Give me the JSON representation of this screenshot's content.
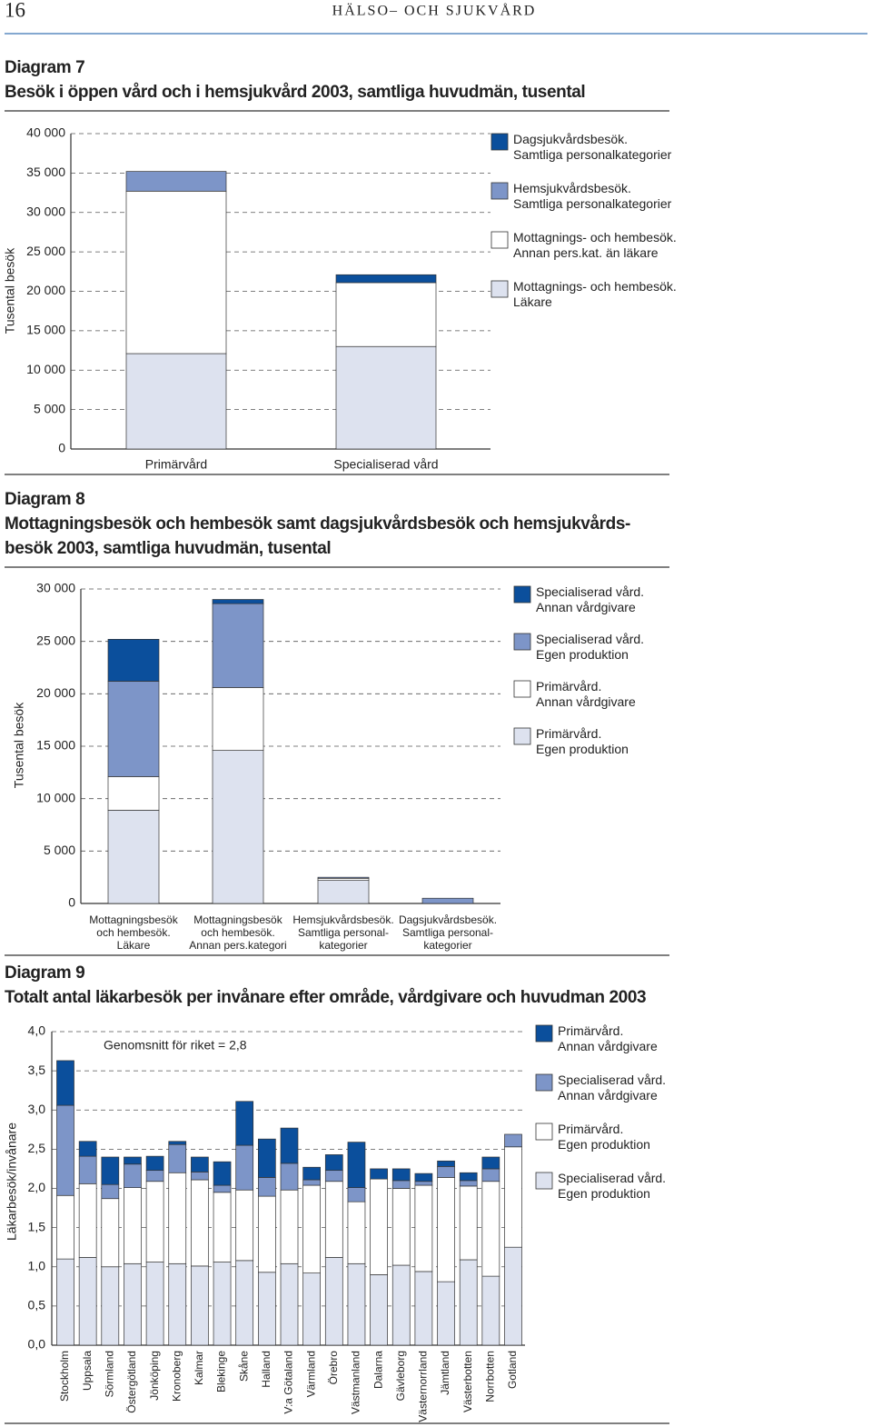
{
  "header": {
    "page_number": "16",
    "running_title": "HÄLSO– OCH SJUKVÅRD"
  },
  "chart_data": [
    {
      "type": "bar",
      "stacked": true,
      "label": "Diagram 7",
      "title": "Besök i öppen vård och i hemsjukvård 2003, samtliga huvudmän, tusental",
      "ylabel": "Tusental besök",
      "categories": [
        "Primärvård",
        "Specialiserad vård"
      ],
      "series": [
        {
          "name": "Dagsjukvårdsbesök.\nSamtliga personalkategorier",
          "color": "#0b4f9c",
          "values": [
            0,
            1000
          ]
        },
        {
          "name": "Hemsjukvårdsbesök.\nSamtliga personalkategorier",
          "color": "#7d95c8",
          "values": [
            2500,
            0
          ]
        },
        {
          "name": "Mottagnings- och hembesök.\nAnnan pers.kat. än läkare",
          "color": "#ffffff",
          "values": [
            20600,
            8100
          ]
        },
        {
          "name": "Mottagnings- och hembesök.\nLäkare",
          "color": "#dde2ef",
          "values": [
            12100,
            13000
          ]
        }
      ],
      "ylim": [
        0,
        40000
      ],
      "yticks": [
        0,
        {
          "value": 5000,
          "label": "5 000"
        },
        {
          "value": 10000,
          "label": "10 000"
        },
        {
          "value": 15000,
          "label": "15 000"
        },
        {
          "value": 20000,
          "label": "20 000"
        },
        {
          "value": 25000,
          "label": "25 000"
        },
        {
          "value": 30000,
          "label": "30 000"
        },
        {
          "value": 35000,
          "label": "35 000"
        },
        {
          "value": 40000,
          "label": "40 000"
        }
      ],
      "grid": true
    },
    {
      "type": "bar",
      "stacked": true,
      "label": "Diagram 8",
      "title": "Mottagningsbesök och hembesök samt dagsjukvårdsbesök och hemsjukvårds-\nbesök 2003, samtliga huvudmän, tusental",
      "ylabel": "Tusental besök",
      "categories": [
        "Mottagningsbesök\noch hembesök.\nLäkare",
        "Mottagningsbesök\noch hembesök.\nAnnan pers.kategori",
        "Hemsjukvårdsbesök.\nSamtliga personal-\nkategorier",
        "Dagsjukvårdsbesök.\nSamtliga personal-\nkategorier"
      ],
      "series": [
        {
          "name": "Specialiserad vård.\nAnnan vårdgivare",
          "color": "#0b4f9c",
          "values": [
            4000,
            400,
            0,
            0
          ]
        },
        {
          "name": "Specialiserad vård.\nEgen produktion",
          "color": "#7d95c8",
          "values": [
            9100,
            8000,
            100,
            500
          ]
        },
        {
          "name": "Primärvård.\nAnnan vårdgivare",
          "color": "#ffffff",
          "values": [
            3200,
            6000,
            200,
            0
          ]
        },
        {
          "name": "Primärvård.\nEgen produktion",
          "color": "#dde2ef",
          "values": [
            8900,
            14600,
            2200,
            0
          ]
        }
      ],
      "ylim": [
        0,
        30000
      ],
      "yticks": [
        0,
        {
          "value": 5000,
          "label": "5 000"
        },
        {
          "value": 10000,
          "label": "10 000"
        },
        {
          "value": 15000,
          "label": "15 000"
        },
        {
          "value": 20000,
          "label": "20 000"
        },
        {
          "value": 25000,
          "label": "25 000"
        },
        {
          "value": 30000,
          "label": "30 000"
        }
      ],
      "grid": true
    },
    {
      "type": "bar",
      "stacked": true,
      "label": "Diagram 9",
      "title": "Totalt antal läkarbesök per invånare efter område, vårdgivare och huvudman 2003",
      "ylabel": "Läkarbesök/invånare",
      "annotation": "Genomsnitt för riket = 2,8",
      "categories": [
        "Stockholm",
        "Uppsala",
        "Sörmland",
        "Östergötland",
        "Jönköping",
        "Kronoberg",
        "Kalmar",
        "Blekinge",
        "Skåne",
        "Halland",
        "V:a Götaland",
        "Värmland",
        "Örebro",
        "Västmanland",
        "Dalarna",
        "Gävleborg",
        "Västernorrland",
        "Jämtland",
        "Västerbotten",
        "Norrbotten",
        "Gotland"
      ],
      "series": [
        {
          "name": "Primärvård.\nAnnan vårdgivare",
          "color": "#0b4f9c",
          "values": [
            0.57,
            0.19,
            0.35,
            0.09,
            0.18,
            0.04,
            0.19,
            0.3,
            0.56,
            0.49,
            0.45,
            0.16,
            0.2,
            0.58,
            0.13,
            0.15,
            0.1,
            0.07,
            0.1,
            0.15,
            0
          ]
        },
        {
          "name": "Specialiserad vård.\nAnnan vårdgivare",
          "color": "#7d95c8",
          "values": [
            1.15,
            0.35,
            0.18,
            0.3,
            0.14,
            0.36,
            0.1,
            0.09,
            0.57,
            0.24,
            0.34,
            0.07,
            0.14,
            0.18,
            0,
            0.1,
            0.05,
            0.14,
            0.07,
            0.16,
            0.16
          ]
        },
        {
          "name": "Primärvård.\nEgen produktion",
          "color": "#ffffff",
          "values": [
            0.81,
            0.94,
            0.87,
            0.97,
            1.03,
            1.16,
            1.1,
            0.89,
            0.9,
            0.97,
            0.94,
            1.12,
            0.97,
            0.79,
            1.22,
            0.98,
            1.1,
            1.33,
            0.94,
            1.21,
            1.28
          ]
        },
        {
          "name": "Specialiserad vård.\nEgen produktion",
          "color": "#dde2ef",
          "values": [
            1.1,
            1.12,
            1.0,
            1.04,
            1.06,
            1.04,
            1.01,
            1.06,
            1.08,
            0.93,
            1.04,
            0.92,
            1.12,
            1.04,
            0.9,
            1.02,
            0.94,
            0.81,
            1.09,
            0.88,
            1.25
          ]
        }
      ],
      "ylim": [
        0,
        4
      ],
      "yticks": [
        {
          "value": 0,
          "label": "0,0"
        },
        {
          "value": 0.5,
          "label": "0,5"
        },
        {
          "value": 1,
          "label": "1,0"
        },
        {
          "value": 1.5,
          "label": "1,5"
        },
        {
          "value": 2,
          "label": "2,0"
        },
        {
          "value": 2.5,
          "label": "2,5"
        },
        {
          "value": 3,
          "label": "3,0"
        },
        {
          "value": 3.5,
          "label": "3,5"
        },
        {
          "value": 4,
          "label": "4,0"
        }
      ],
      "grid": true
    }
  ]
}
